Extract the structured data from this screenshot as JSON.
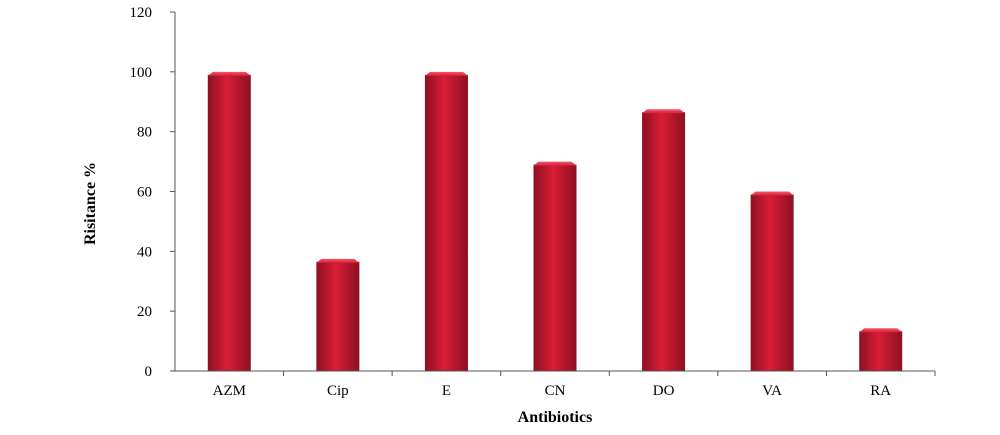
{
  "chart_data": {
    "type": "bar",
    "title": "",
    "xlabel": "Antibiotics",
    "ylabel": "Risitance %",
    "categories": [
      "AZM",
      "Cip",
      "E",
      "CN",
      "DO",
      "VA",
      "RA"
    ],
    "values": [
      100,
      37.5,
      100,
      70,
      87.5,
      60,
      14.3
    ],
    "ylim": [
      0,
      120
    ],
    "yticks": [
      0,
      20,
      40,
      60,
      80,
      100,
      120
    ],
    "grid": false,
    "legend": "none",
    "bar_color": "#d81e35",
    "bar_dark": "#8e0f22",
    "bar_light": "#f0596e"
  }
}
